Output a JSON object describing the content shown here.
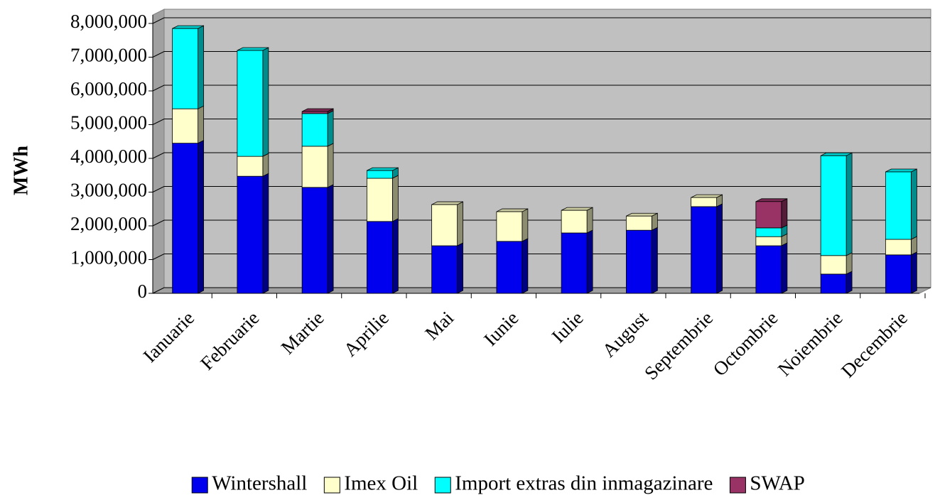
{
  "chart_data": {
    "type": "bar",
    "stacked": true,
    "y_label": "MWh",
    "categories": [
      "Ianuarie",
      "Februarie",
      "Martie",
      "Aprilie",
      "Mai",
      "Iunie",
      "Iulie",
      "August",
      "Septembrie",
      "Octombrie",
      "Noiembrie",
      "Decembrie"
    ],
    "series": [
      {
        "name": "Wintershall",
        "color": "#0000ee",
        "values": [
          4450000,
          3470000,
          3140000,
          2130000,
          1410000,
          1540000,
          1790000,
          1870000,
          2570000,
          1410000,
          570000,
          1140000
        ]
      },
      {
        "name": "Imex Oil",
        "color": "#ffffcc",
        "values": [
          1020000,
          590000,
          1220000,
          1280000,
          1220000,
          880000,
          670000,
          420000,
          270000,
          270000,
          550000,
          460000
        ]
      },
      {
        "name": "Import extras din inmagazinare",
        "color": "#00ffff",
        "values": [
          2380000,
          3140000,
          970000,
          230000,
          null,
          null,
          null,
          null,
          null,
          260000,
          2960000,
          2000000
        ]
      },
      {
        "name": "SWAP",
        "color": "#993366",
        "values": [
          null,
          null,
          60000,
          null,
          null,
          null,
          null,
          null,
          null,
          780000,
          null,
          null
        ]
      }
    ],
    "ylim": [
      0,
      8000000
    ],
    "yticks": [
      0,
      {
        "value": 1000000,
        "label": "1,000,000"
      },
      {
        "value": 2000000,
        "label": "2,000,000"
      },
      {
        "value": 3000000,
        "label": "3,000,000"
      },
      {
        "value": 4000000,
        "label": "4,000,000"
      },
      {
        "value": 5000000,
        "label": "5,000,000"
      },
      {
        "value": 6000000,
        "label": "6,000,000"
      },
      {
        "value": 7000000,
        "label": "7,000,000"
      },
      {
        "value": 8000000,
        "label": "8,000,000"
      }
    ],
    "grid": true,
    "legend": "bottom"
  }
}
